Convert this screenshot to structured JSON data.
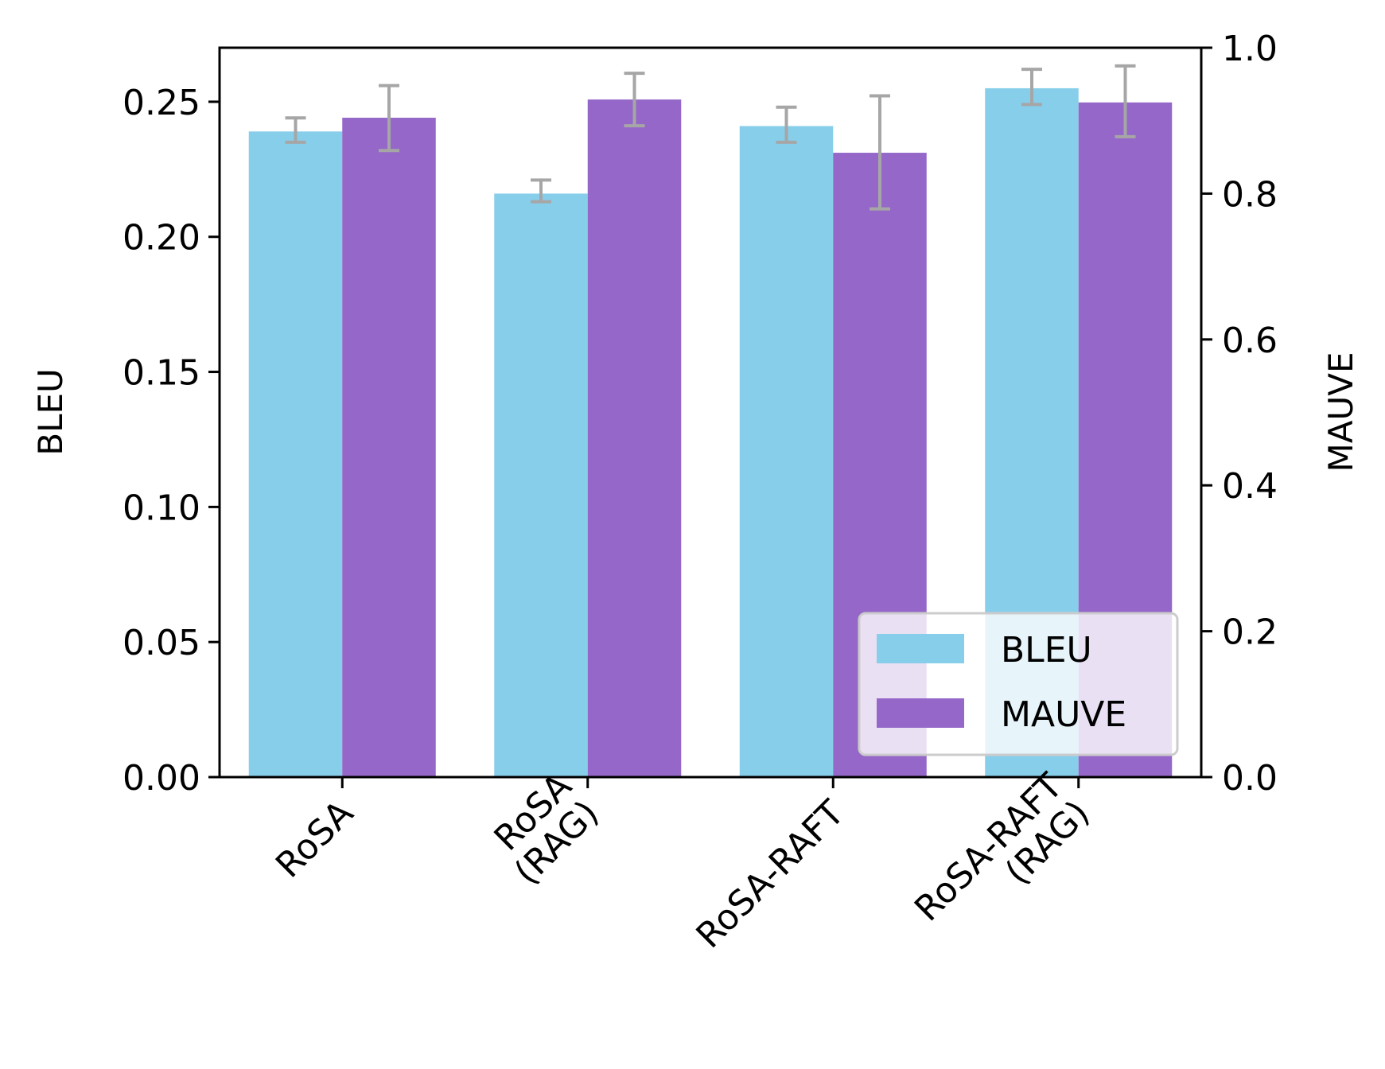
{
  "colors": {
    "bleu": "#87CEEB",
    "mauve": "#9467C8",
    "error_bar": "#A6A6A6",
    "axis": "#000000"
  },
  "chart_data": {
    "type": "bar",
    "categories": [
      [
        "RoSA"
      ],
      [
        "RoSA",
        "(RAG)"
      ],
      [
        "RoSA-RAFT"
      ],
      [
        "RoSA-RAFT",
        "(RAG)"
      ]
    ],
    "series": [
      {
        "name": "BLEU",
        "axis": "left",
        "values": [
          0.239,
          0.216,
          0.241,
          0.255
        ],
        "error": [
          [
            0.235,
            0.244
          ],
          [
            0.213,
            0.221
          ],
          [
            0.235,
            0.248
          ],
          [
            0.249,
            0.262
          ]
        ]
      },
      {
        "name": "MAUVE",
        "axis": "right",
        "values": [
          0.904,
          0.929,
          0.856,
          0.925
        ],
        "error": [
          [
            0.859,
            0.948
          ],
          [
            0.893,
            0.965
          ],
          [
            0.779,
            0.934
          ],
          [
            0.878,
            0.975
          ]
        ]
      }
    ],
    "ylabel_left": "BLEU",
    "ylabel_right": "MAUVE",
    "ylim_left": [
      0,
      0.27
    ],
    "ylim_right": [
      0,
      1.0
    ],
    "yticks_left": [
      "0.00",
      "0.05",
      "0.10",
      "0.15",
      "0.20",
      "0.25"
    ],
    "yticks_right": [
      "0.0",
      "0.2",
      "0.4",
      "0.6",
      "0.8",
      "1.0"
    ],
    "legend": {
      "placement": "lower-right",
      "entries": [
        "BLEU",
        "MAUVE"
      ]
    },
    "grid": false,
    "xtick_rotation": 45
  }
}
